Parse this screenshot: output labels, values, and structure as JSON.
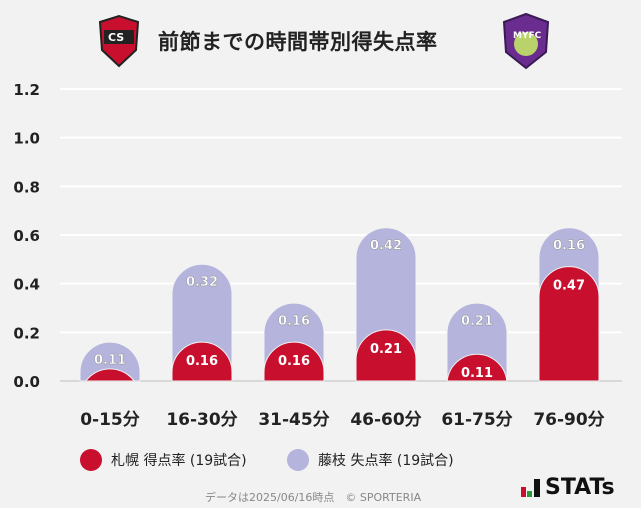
{
  "title": "前節までの時間帯別得失点率",
  "colors": {
    "scored": "#c8102e",
    "conceded": "#b4b4dd",
    "grid": "#ffffff",
    "bg": "#f2f2f2"
  },
  "legend": [
    {
      "label": "札幌 得点率 (19試合)",
      "color": "#c8102e"
    },
    {
      "label": "藤枝 失点率 (19試合)",
      "color": "#b4b4dd"
    }
  ],
  "footer": "データは2025/06/16時点　© SPORTERIA",
  "brand": "STATs",
  "logos": {
    "home": "CS CONSADOLE SAPPORO",
    "away": "FUJIEDA MYFC"
  },
  "chart_data": {
    "type": "bar",
    "stacked": true,
    "categories": [
      "0-15分",
      "16-30分",
      "31-45分",
      "46-60分",
      "61-75分",
      "76-90分"
    ],
    "series": [
      {
        "name": "札幌 得点率 (19試合)",
        "values": [
          0.05,
          0.16,
          0.16,
          0.21,
          0.11,
          0.47
        ],
        "labels": [
          "",
          "0.16",
          "0.16",
          "0.21",
          "0.11",
          "0.47"
        ]
      },
      {
        "name": "藤枝 失点率 (19試合)",
        "values": [
          0.11,
          0.32,
          0.16,
          0.42,
          0.21,
          0.16
        ],
        "labels": [
          "0.11",
          "0.32",
          "0.16",
          "0.42",
          "0.21",
          "0.16"
        ]
      }
    ],
    "yticks": [
      "0.0",
      "0.2",
      "0.4",
      "0.6",
      "0.8",
      "1.0",
      "1.2"
    ],
    "ylim": [
      0,
      1.2
    ],
    "grid": true,
    "legend_position": "bottom"
  }
}
